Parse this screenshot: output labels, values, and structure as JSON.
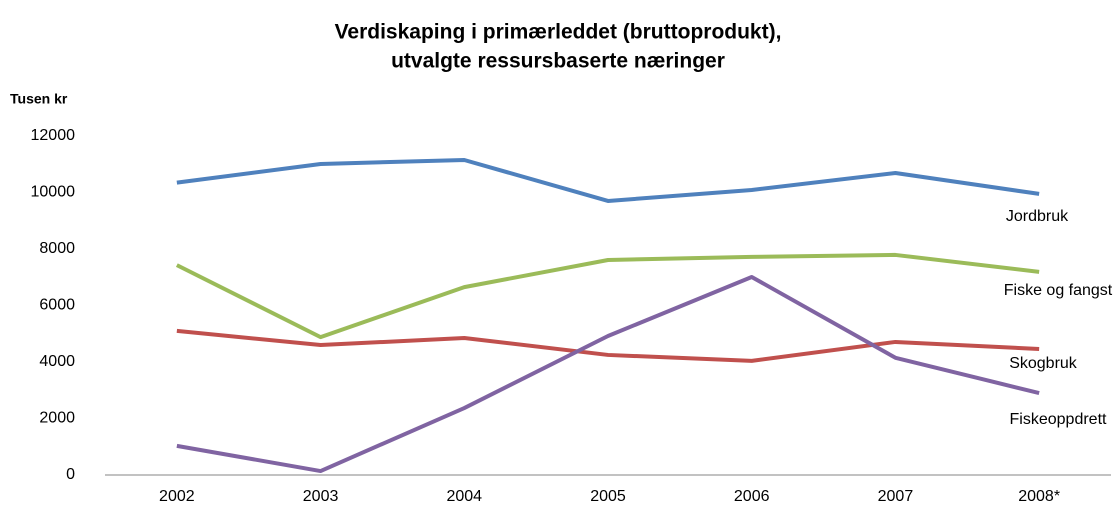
{
  "chart_data": {
    "type": "line",
    "title": [
      "Verdiskaping i primærleddet (bruttoprodukt),",
      "utvalgte ressursbaserte næringer"
    ],
    "y_label": "Tusen kr",
    "categories": [
      "2002",
      "2003",
      "2004",
      "2005",
      "2006",
      "2007",
      "2008*"
    ],
    "series": [
      {
        "name": "Jordbruk",
        "color": "#4f81bd",
        "values": [
          10350,
          11010,
          11150,
          9700,
          10090,
          10690,
          9950
        ]
      },
      {
        "name": "Fiske og fangst",
        "color": "#9bbb59",
        "values": [
          7430,
          4880,
          6650,
          7610,
          7720,
          7790,
          7190
        ]
      },
      {
        "name": "Skogbruk",
        "color": "#c0504d",
        "values": [
          5100,
          4600,
          4850,
          4250,
          4040,
          4710,
          4460
        ]
      },
      {
        "name": "Fiskeoppdrett",
        "color": "#8064a2",
        "values": [
          1030,
          140,
          2370,
          4920,
          7010,
          4150,
          2900
        ]
      }
    ],
    "ylim": [
      0,
      12000
    ],
    "yticks": [
      0,
      2000,
      4000,
      6000,
      8000,
      10000,
      12000
    ],
    "grid": false
  }
}
